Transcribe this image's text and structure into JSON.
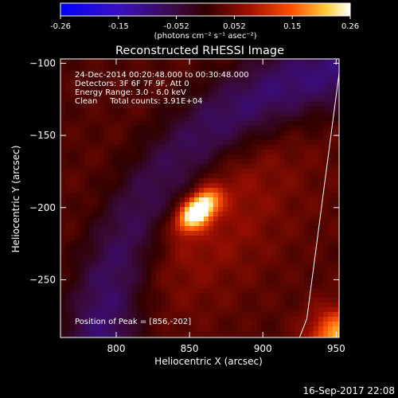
{
  "chart_data": {
    "type": "heatmap",
    "title": "Reconstructed RHESSI Image",
    "xlabel": "Heliocentric X (arcsec)",
    "ylabel": "Heliocentric Y (arcsec)",
    "xlim": [
      762,
      952
    ],
    "ylim": [
      -290,
      -97
    ],
    "x_ticks": [
      800,
      850,
      900,
      950
    ],
    "y_ticks": [
      -100,
      -150,
      -200,
      -250
    ],
    "colorbar": {
      "ticks": [
        "-0.26",
        "-0.15",
        "-0.052",
        "0.052",
        "0.15",
        "0.26"
      ],
      "range": [
        -0.26,
        0.26
      ],
      "unit_label": "(photons cm⁻² s⁻¹ asec⁻²)"
    },
    "annotations": [
      "24-Dec-2014 00:20:48.000 to 00:30:48.000",
      "Detectors: 3F 6F 7F 9F, Att 0",
      "Energy Range: 3.0 - 6.0 keV",
      "Clean     Total counts: 3.91E+04"
    ],
    "peak_label": "Position of Peak = [856,-202]",
    "peak": {
      "x": 856,
      "y": -202,
      "value": 0.26
    },
    "limb": [
      [
        952,
        -107
      ],
      [
        930,
        -277
      ],
      [
        925,
        -290
      ]
    ],
    "grid": false
  },
  "footer": {
    "date": "16-Sep-2017 22:08"
  },
  "colors": {
    "background": "#000000",
    "foreground": "#ffffff"
  }
}
